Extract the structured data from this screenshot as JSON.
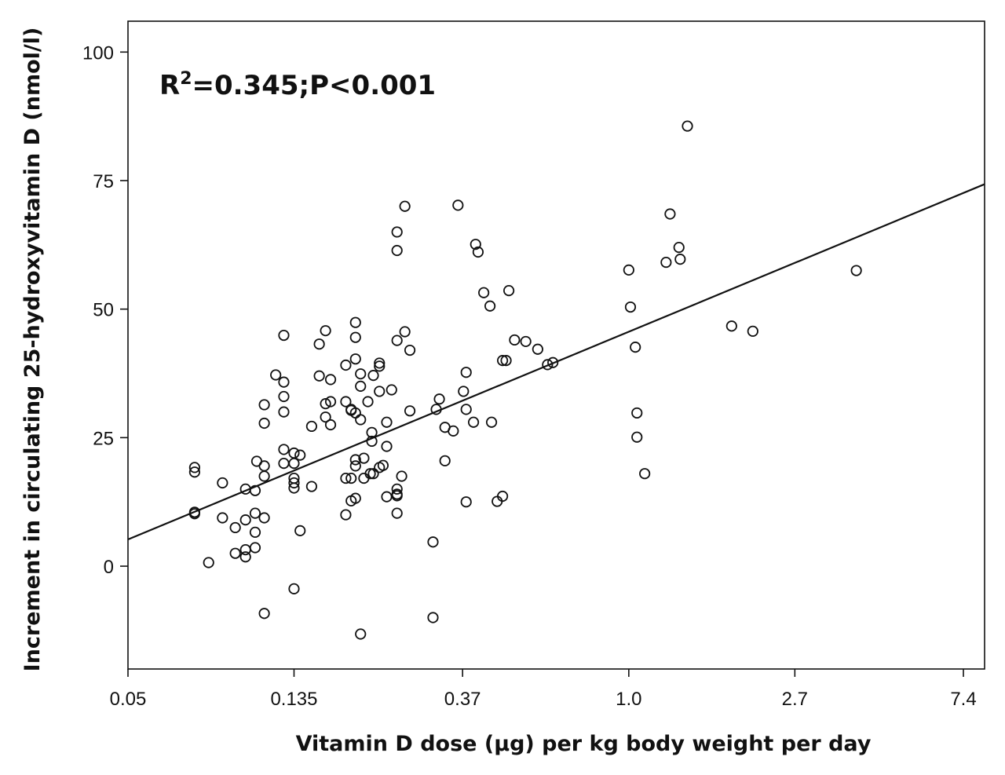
{
  "chart_data": {
    "type": "scatter",
    "title": "",
    "xlabel": "Vitamin D dose (µg) per kg body weight per day",
    "ylabel": "Increment  in circulating 25-hydroxyvitamin D (nmol/l)",
    "x_scale": "log",
    "x_ticks": [
      0.05,
      0.135,
      0.37,
      1.0,
      2.7,
      7.4
    ],
    "x_tick_labels": [
      "0.05",
      "0.135",
      "0.37",
      "1.0",
      "2.7",
      "7.4"
    ],
    "y_ticks": [
      0,
      25,
      50,
      75,
      100
    ],
    "y_tick_labels": [
      "0",
      "25",
      "50",
      "75",
      "100"
    ],
    "xlim": [
      0.05,
      8.4
    ],
    "ylim": [
      -20,
      106
    ],
    "annotation": {
      "prefix": "R",
      "superscript": "2",
      "suffix": "=0.345;P<0.001"
    },
    "regression_line": {
      "x": [
        0.05,
        8.4
      ],
      "y": [
        5.2,
        74.3
      ]
    },
    "points": [
      [
        0.0745,
        19.2
      ],
      [
        0.0745,
        18.3
      ],
      [
        0.0745,
        10.5
      ],
      [
        0.0745,
        10.2
      ],
      [
        0.081,
        0.7
      ],
      [
        0.088,
        16.2
      ],
      [
        0.088,
        9.4
      ],
      [
        0.095,
        7.5
      ],
      [
        0.095,
        2.5
      ],
      [
        0.101,
        15.0
      ],
      [
        0.101,
        9.0
      ],
      [
        0.101,
        3.2
      ],
      [
        0.101,
        1.8
      ],
      [
        0.107,
        14.7
      ],
      [
        0.107,
        10.3
      ],
      [
        0.107,
        6.6
      ],
      [
        0.107,
        3.6
      ],
      [
        0.108,
        20.4
      ],
      [
        0.113,
        31.4
      ],
      [
        0.113,
        27.8
      ],
      [
        0.113,
        19.5
      ],
      [
        0.113,
        17.5
      ],
      [
        0.113,
        9.4
      ],
      [
        0.113,
        -9.2
      ],
      [
        0.121,
        37.2
      ],
      [
        0.127,
        44.9
      ],
      [
        0.127,
        35.8
      ],
      [
        0.127,
        33.0
      ],
      [
        0.127,
        30.0
      ],
      [
        0.127,
        22.7
      ],
      [
        0.127,
        20.0
      ],
      [
        0.135,
        22.0
      ],
      [
        0.135,
        20.0
      ],
      [
        0.135,
        17.1
      ],
      [
        0.135,
        16.2
      ],
      [
        0.135,
        15.2
      ],
      [
        0.135,
        -4.4
      ],
      [
        0.14,
        21.6
      ],
      [
        0.14,
        6.9
      ],
      [
        0.15,
        27.2
      ],
      [
        0.15,
        15.5
      ],
      [
        0.157,
        43.2
      ],
      [
        0.157,
        37.0
      ],
      [
        0.163,
        45.8
      ],
      [
        0.163,
        31.6
      ],
      [
        0.163,
        29.0
      ],
      [
        0.168,
        36.3
      ],
      [
        0.168,
        32.0
      ],
      [
        0.168,
        27.5
      ],
      [
        0.184,
        39.1
      ],
      [
        0.184,
        32.0
      ],
      [
        0.184,
        17.1
      ],
      [
        0.184,
        10.0
      ],
      [
        0.19,
        30.5
      ],
      [
        0.19,
        30.3
      ],
      [
        0.19,
        17.1
      ],
      [
        0.19,
        12.7
      ],
      [
        0.195,
        47.4
      ],
      [
        0.195,
        44.5
      ],
      [
        0.195,
        40.3
      ],
      [
        0.195,
        29.8
      ],
      [
        0.195,
        20.7
      ],
      [
        0.195,
        19.5
      ],
      [
        0.195,
        13.2
      ],
      [
        0.201,
        37.4
      ],
      [
        0.201,
        35.0
      ],
      [
        0.201,
        28.5
      ],
      [
        0.201,
        -13.2
      ],
      [
        0.205,
        21.0
      ],
      [
        0.205,
        17.1
      ],
      [
        0.21,
        32.0
      ],
      [
        0.213,
        18.0
      ],
      [
        0.215,
        26.0
      ],
      [
        0.215,
        24.3
      ],
      [
        0.217,
        37.1
      ],
      [
        0.217,
        18.0
      ],
      [
        0.225,
        39.5
      ],
      [
        0.225,
        38.9
      ],
      [
        0.225,
        34.0
      ],
      [
        0.225,
        19.2
      ],
      [
        0.23,
        19.6
      ],
      [
        0.235,
        28.0
      ],
      [
        0.235,
        23.3
      ],
      [
        0.235,
        13.5
      ],
      [
        0.242,
        34.3
      ],
      [
        0.25,
        65.0
      ],
      [
        0.25,
        61.4
      ],
      [
        0.25,
        43.9
      ],
      [
        0.25,
        15.0
      ],
      [
        0.25,
        14.0
      ],
      [
        0.25,
        13.7
      ],
      [
        0.25,
        10.3
      ],
      [
        0.257,
        17.5
      ],
      [
        0.262,
        70.0
      ],
      [
        0.262,
        45.6
      ],
      [
        0.27,
        42.0
      ],
      [
        0.27,
        30.2
      ],
      [
        0.31,
        4.7
      ],
      [
        0.31,
        -10.0
      ],
      [
        0.316,
        30.5
      ],
      [
        0.322,
        32.5
      ],
      [
        0.333,
        27.0
      ],
      [
        0.333,
        20.5
      ],
      [
        0.35,
        26.3
      ],
      [
        0.36,
        70.2
      ],
      [
        0.372,
        34.0
      ],
      [
        0.378,
        37.7
      ],
      [
        0.378,
        30.5
      ],
      [
        0.378,
        12.5
      ],
      [
        0.395,
        28.0
      ],
      [
        0.4,
        62.6
      ],
      [
        0.406,
        61.1
      ],
      [
        0.42,
        53.2
      ],
      [
        0.436,
        50.6
      ],
      [
        0.44,
        28.0
      ],
      [
        0.455,
        12.6
      ],
      [
        0.47,
        40.0
      ],
      [
        0.47,
        13.6
      ],
      [
        0.48,
        40.0
      ],
      [
        0.488,
        53.6
      ],
      [
        0.505,
        44.0
      ],
      [
        0.54,
        43.7
      ],
      [
        0.58,
        42.2
      ],
      [
        0.615,
        39.2
      ],
      [
        0.635,
        39.6
      ],
      [
        1.0,
        57.6
      ],
      [
        1.01,
        50.4
      ],
      [
        1.04,
        42.6
      ],
      [
        1.05,
        29.8
      ],
      [
        1.05,
        25.1
      ],
      [
        1.1,
        18.0
      ],
      [
        1.25,
        59.1
      ],
      [
        1.28,
        68.5
      ],
      [
        1.35,
        62.0
      ],
      [
        1.36,
        59.7
      ],
      [
        1.42,
        85.6
      ],
      [
        1.85,
        46.7
      ],
      [
        2.1,
        45.7
      ],
      [
        3.9,
        57.5
      ]
    ]
  }
}
